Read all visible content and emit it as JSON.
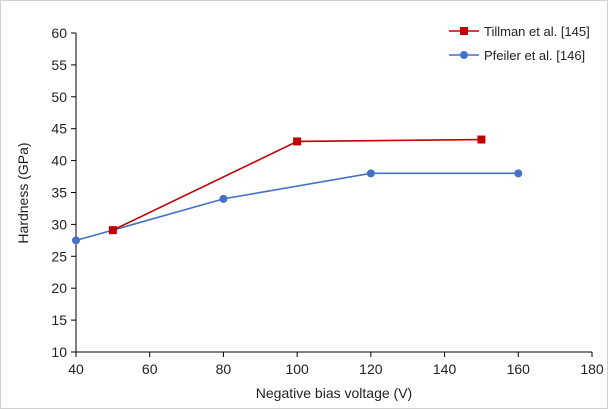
{
  "chart_data": {
    "type": "line",
    "xlabel": "Negative bias voltage (V)",
    "ylabel": "Hardness (GPa)",
    "xlim": [
      40,
      180
    ],
    "ylim": [
      10,
      60
    ],
    "x_ticks": [
      40,
      60,
      80,
      100,
      120,
      140,
      160,
      180
    ],
    "y_ticks": [
      10,
      15,
      20,
      25,
      30,
      35,
      40,
      45,
      50,
      55,
      60
    ],
    "grid": false,
    "legend_position": "top-right",
    "series": [
      {
        "name": "Tillman et al. [145]",
        "color": "#c00000",
        "marker": "square",
        "x": [
          50,
          100,
          150
        ],
        "y": [
          29.1,
          43.0,
          43.3
        ]
      },
      {
        "name": "Pfeiler et al. [146]",
        "color": "#4472c4",
        "marker": "circle",
        "x": [
          40,
          50,
          80,
          120,
          160
        ],
        "y": [
          27.5,
          29.1,
          34.0,
          38.0,
          38.0
        ]
      }
    ]
  }
}
